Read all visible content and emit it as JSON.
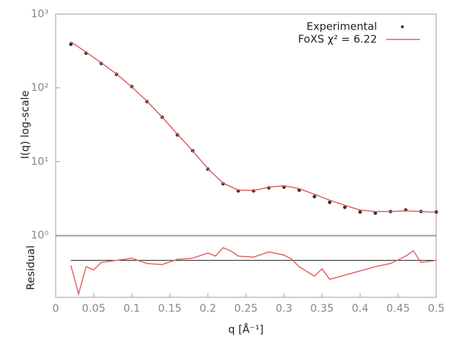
{
  "chart_data": [
    {
      "type": "line",
      "ylabel": "I(q) log-scale",
      "log_y": true,
      "xlim": [
        0,
        0.5
      ],
      "ylim": [
        1,
        1000
      ],
      "yticks": [
        {
          "value": 1,
          "label": "10⁰"
        },
        {
          "value": 10,
          "label": "10¹"
        },
        {
          "value": 100,
          "label": "10²"
        },
        {
          "value": 1000,
          "label": "10³"
        }
      ],
      "legend": "upper right",
      "x": [
        0.02,
        0.04,
        0.06,
        0.08,
        0.1,
        0.12,
        0.14,
        0.16,
        0.18,
        0.2,
        0.22,
        0.24,
        0.26,
        0.28,
        0.3,
        0.32,
        0.34,
        0.36,
        0.38,
        0.4,
        0.42,
        0.44,
        0.46,
        0.48,
        0.5
      ],
      "series": [
        {
          "name": "Experimental",
          "color": "#333333",
          "style": "points",
          "values": [
            390,
            295,
            214,
            152,
            104,
            65,
            40,
            23,
            14,
            7.9,
            5.0,
            4.0,
            4.0,
            4.4,
            4.5,
            4.1,
            3.35,
            2.8,
            2.4,
            2.07,
            2.0,
            2.1,
            2.2,
            2.1,
            2.07
          ]
        },
        {
          "name": "FoXS χ² = 6.22",
          "color": "#e05a5a",
          "style": "line",
          "values": [
            420,
            305,
            218,
            154,
            103,
            66,
            40,
            23.5,
            14,
            8.0,
            5.1,
            4.1,
            4.05,
            4.5,
            4.7,
            4.3,
            3.6,
            3.0,
            2.55,
            2.2,
            2.1,
            2.1,
            2.15,
            2.1,
            2.05
          ]
        }
      ]
    },
    {
      "type": "line",
      "ylabel": "Residual",
      "xlabel": "q [Å⁻¹]",
      "xlim": [
        0,
        0.5
      ],
      "ylim": [
        -3.5,
        2.3
      ],
      "xticks": [
        0,
        0.05,
        0.1,
        0.15,
        0.2,
        0.25,
        0.3,
        0.35,
        0.4,
        0.45,
        0.5
      ],
      "color": "#e06060",
      "x": [
        0.02,
        0.025,
        0.03,
        0.04,
        0.05,
        0.06,
        0.08,
        0.1,
        0.12,
        0.14,
        0.16,
        0.18,
        0.2,
        0.21,
        0.22,
        0.23,
        0.24,
        0.26,
        0.28,
        0.3,
        0.31,
        0.32,
        0.34,
        0.35,
        0.36,
        0.38,
        0.4,
        0.42,
        0.44,
        0.46,
        0.47,
        0.48,
        0.5
      ],
      "values": [
        -0.5,
        -1.8,
        -3.2,
        -0.6,
        -0.9,
        -0.2,
        0.0,
        0.2,
        -0.3,
        -0.4,
        0.1,
        0.2,
        0.7,
        0.4,
        1.2,
        0.9,
        0.4,
        0.3,
        0.8,
        0.5,
        0.1,
        -0.6,
        -1.5,
        -0.8,
        -1.8,
        -1.4,
        -1.0,
        -0.6,
        -0.3,
        0.4,
        0.9,
        -0.2,
        0.0
      ]
    }
  ]
}
